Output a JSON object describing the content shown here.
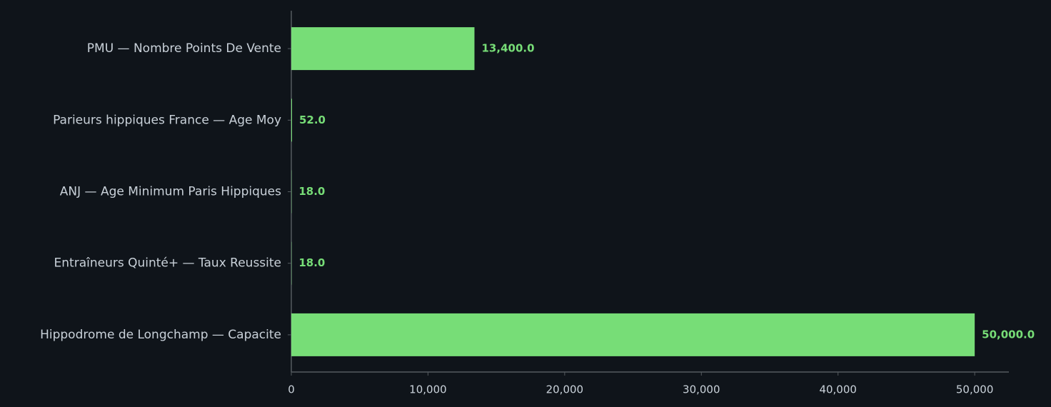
{
  "chart_data": {
    "type": "barh",
    "categories": [
      "PMU — Nombre Points De Vente",
      "Parieurs hippiques France — Age Moy",
      "ANJ — Age Minimum Paris Hippiques",
      "Entraîneurs Quinté+ — Taux Reussite",
      "Hippodrome de Longchamp — Capacite"
    ],
    "values": [
      13400,
      52,
      18,
      18,
      50000
    ],
    "value_labels": [
      "13,400.0",
      "52.0",
      "18.0",
      "18.0",
      "50,000.0"
    ],
    "color": "#77dd77",
    "xlim": [
      0,
      52500
    ],
    "xticks": [
      0,
      {
        "value": 10000,
        "label": "10,000"
      },
      {
        "value": 20000,
        "label": "20,000"
      },
      {
        "value": 30000,
        "label": "30,000"
      },
      {
        "value": 40000,
        "label": "40,000"
      },
      {
        "value": 50000,
        "label": "50,000"
      }
    ],
    "grid": false
  }
}
